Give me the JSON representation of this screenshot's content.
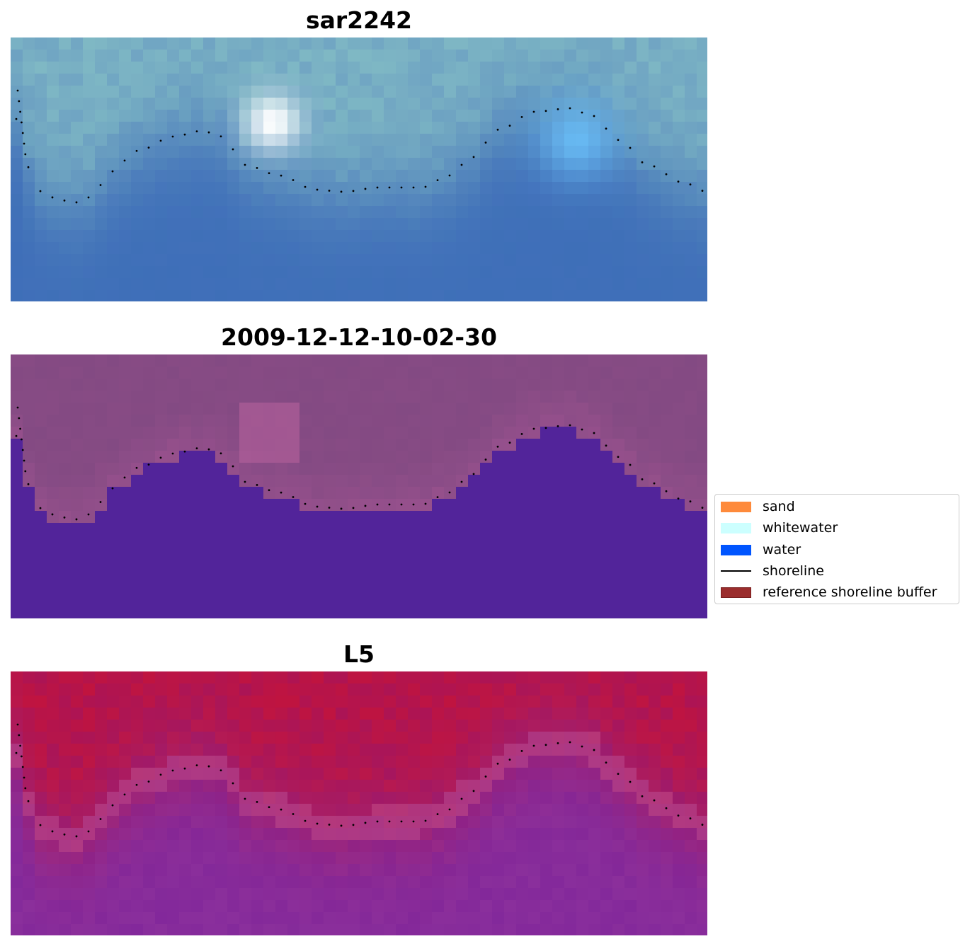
{
  "panels": [
    {
      "title": "sar2242",
      "style": "sar"
    },
    {
      "title": "2009-12-12-10-02-30",
      "style": "classified"
    },
    {
      "title": "L5",
      "style": "index"
    }
  ],
  "legend": {
    "items": [
      {
        "label": "sand",
        "color": "#fe8a3b",
        "kind": "patch"
      },
      {
        "label": "whitewater",
        "color": "#ccffff",
        "kind": "patch"
      },
      {
        "label": "water",
        "color": "#0055ff",
        "kind": "patch"
      },
      {
        "label": "shoreline",
        "color": "#000000",
        "kind": "line"
      },
      {
        "label": "reference shoreline buffer",
        "color": "#9b2d2d",
        "kind": "patch"
      }
    ]
  },
  "colors": {
    "sar_land": "#7fb8c4",
    "sar_water": "#3e6fb8",
    "classified_land": "#874b84",
    "classified_water": "#52249a",
    "index_land": "#c0143f",
    "index_water": "#8a2f9c",
    "shoreline_dots": "#000000"
  }
}
